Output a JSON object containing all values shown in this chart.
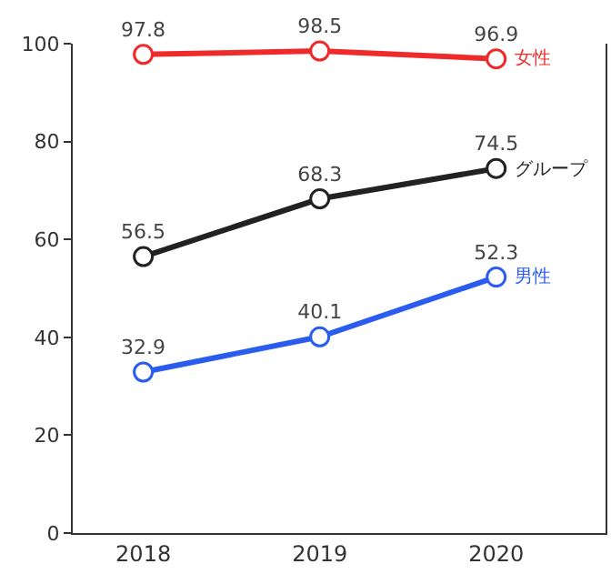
{
  "chart_data": {
    "type": "line",
    "categories": [
      "2018",
      "2019",
      "2020"
    ],
    "series": [
      {
        "name": "女性",
        "color": "#ee2a2a",
        "values": [
          97.8,
          98.5,
          96.9
        ]
      },
      {
        "name": "グループ",
        "color": "#222222",
        "values": [
          56.5,
          68.3,
          74.5
        ]
      },
      {
        "name": "男性",
        "color": "#2a5cf0",
        "values": [
          32.9,
          40.1,
          52.3
        ]
      }
    ],
    "ylim": [
      0,
      100
    ],
    "yticks": [
      0,
      20,
      40,
      60,
      80,
      100
    ],
    "grid": false,
    "legend": false,
    "marker": "circle",
    "line_style": "solid",
    "data_labels": true
  }
}
